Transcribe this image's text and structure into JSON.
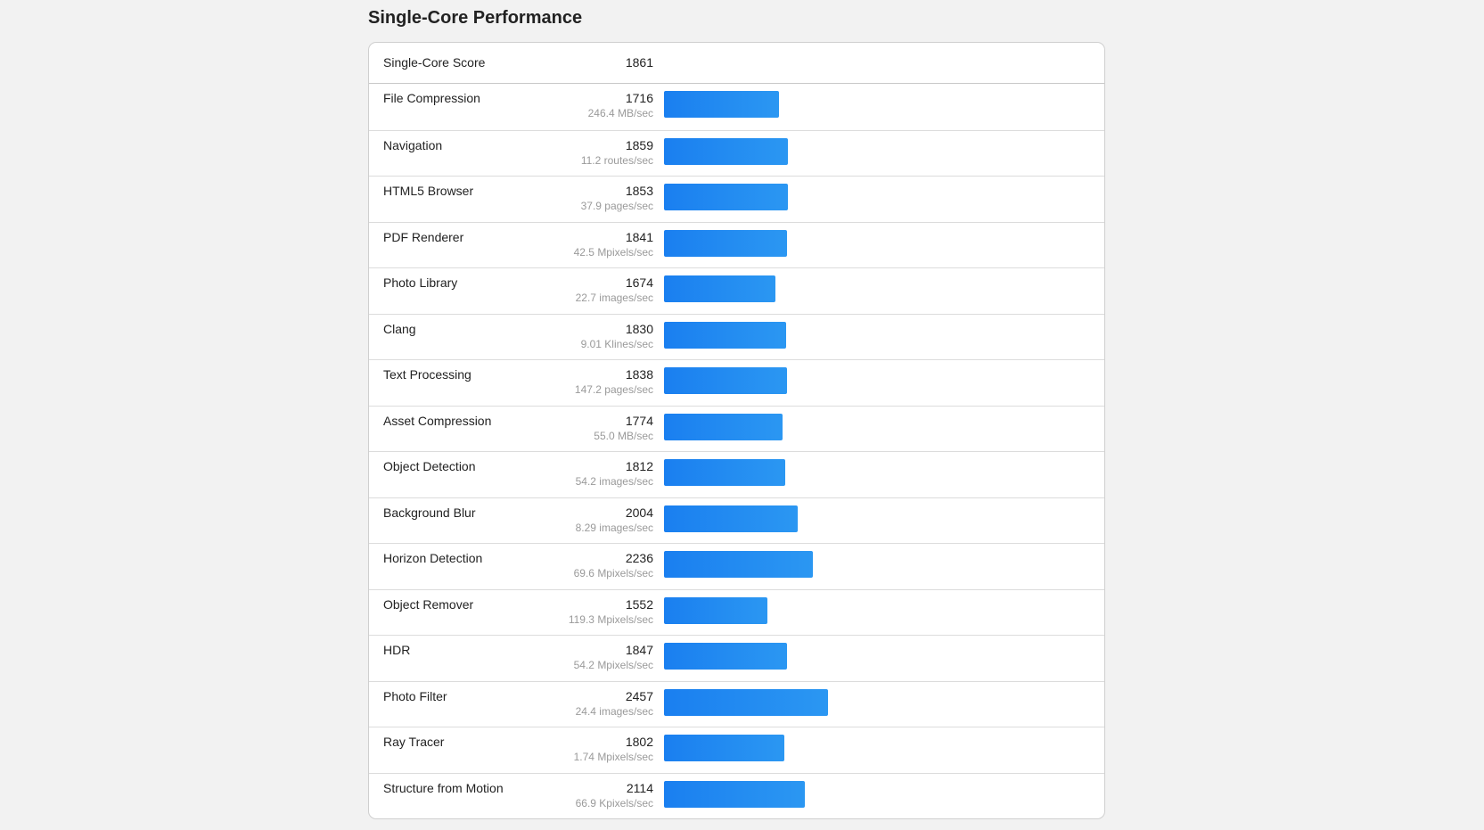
{
  "page": {
    "title": "Single-Core Performance"
  },
  "score": {
    "label": "Single-Core Score",
    "value": "1861"
  },
  "bar_scale_max": 2457,
  "bar_color": "#1a7ff0",
  "benchmarks": [
    {
      "name": "File Compression",
      "score": 1716,
      "score_label": "1716",
      "rate": "246.4 MB/sec"
    },
    {
      "name": "Navigation",
      "score": 1859,
      "score_label": "1859",
      "rate": "11.2 routes/sec"
    },
    {
      "name": "HTML5 Browser",
      "score": 1853,
      "score_label": "1853",
      "rate": "37.9 pages/sec"
    },
    {
      "name": "PDF Renderer",
      "score": 1841,
      "score_label": "1841",
      "rate": "42.5 Mpixels/sec"
    },
    {
      "name": "Photo Library",
      "score": 1674,
      "score_label": "1674",
      "rate": "22.7 images/sec"
    },
    {
      "name": "Clang",
      "score": 1830,
      "score_label": "1830",
      "rate": "9.01 Klines/sec"
    },
    {
      "name": "Text Processing",
      "score": 1838,
      "score_label": "1838",
      "rate": "147.2 pages/sec"
    },
    {
      "name": "Asset Compression",
      "score": 1774,
      "score_label": "1774",
      "rate": "55.0 MB/sec"
    },
    {
      "name": "Object Detection",
      "score": 1812,
      "score_label": "1812",
      "rate": "54.2 images/sec"
    },
    {
      "name": "Background Blur",
      "score": 2004,
      "score_label": "2004",
      "rate": "8.29 images/sec"
    },
    {
      "name": "Horizon Detection",
      "score": 2236,
      "score_label": "2236",
      "rate": "69.6 Mpixels/sec"
    },
    {
      "name": "Object Remover",
      "score": 1552,
      "score_label": "1552",
      "rate": "119.3 Mpixels/sec"
    },
    {
      "name": "HDR",
      "score": 1847,
      "score_label": "1847",
      "rate": "54.2 Mpixels/sec"
    },
    {
      "name": "Photo Filter",
      "score": 2457,
      "score_label": "2457",
      "rate": "24.4 images/sec"
    },
    {
      "name": "Ray Tracer",
      "score": 1802,
      "score_label": "1802",
      "rate": "1.74 Mpixels/sec"
    },
    {
      "name": "Structure from Motion",
      "score": 2114,
      "score_label": "2114",
      "rate": "66.9 Kpixels/sec"
    }
  ]
}
